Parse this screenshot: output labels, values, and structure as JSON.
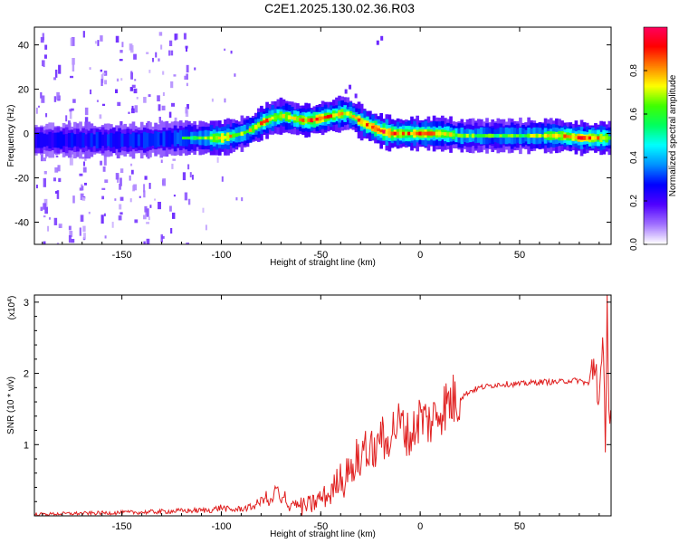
{
  "title": "C2E1.2025.130.02.36.R03",
  "chart_data": [
    {
      "type": "heatmap",
      "xlabel": "Height of straight line (km)",
      "ylabel": "Frequency (Hz)",
      "xlim": [
        -194,
        96
      ],
      "ylim": [
        -50,
        48
      ],
      "xticks": [
        -150,
        -100,
        -50,
        0,
        50
      ],
      "yticks": [
        -40,
        -20,
        0,
        20,
        40
      ],
      "colorbar": {
        "label": "Normalized spectral amplitude",
        "range": [
          0,
          1
        ],
        "ticks": [
          0.0,
          0.2,
          0.4,
          0.6,
          0.8
        ],
        "tick_labels": [
          "0.0",
          "0.2",
          "0.4",
          "0.6",
          "0.8"
        ],
        "colormap": [
          "#ffffff",
          "#a070ff",
          "#5000ff",
          "#0000ff",
          "#0090ff",
          "#00ffff",
          "#00ff60",
          "#40ff00",
          "#ffff00",
          "#ff8000",
          "#ff0000",
          "#ff0060"
        ]
      },
      "ridge": [
        {
          "x": -194,
          "f": -3,
          "amp": 0.4
        },
        {
          "x": -180,
          "f": -3,
          "amp": 0.45
        },
        {
          "x": -160,
          "f": -3,
          "amp": 0.5
        },
        {
          "x": -140,
          "f": -3,
          "amp": 0.5
        },
        {
          "x": -120,
          "f": -2,
          "amp": 0.55
        },
        {
          "x": -110,
          "f": -2,
          "amp": 0.6
        },
        {
          "x": -100,
          "f": -2,
          "amp": 0.85
        },
        {
          "x": -95,
          "f": -1,
          "amp": 0.7
        },
        {
          "x": -90,
          "f": 0,
          "amp": 0.65
        },
        {
          "x": -85,
          "f": 2,
          "amp": 0.7
        },
        {
          "x": -80,
          "f": 5,
          "amp": 0.8
        },
        {
          "x": -75,
          "f": 7,
          "amp": 0.75
        },
        {
          "x": -70,
          "f": 8,
          "amp": 0.7
        },
        {
          "x": -65,
          "f": 7,
          "amp": 0.7
        },
        {
          "x": -60,
          "f": 6,
          "amp": 0.75
        },
        {
          "x": -55,
          "f": 6,
          "amp": 0.85
        },
        {
          "x": -50,
          "f": 7,
          "amp": 0.8
        },
        {
          "x": -45,
          "f": 8,
          "amp": 0.8
        },
        {
          "x": -40,
          "f": 9,
          "amp": 0.75
        },
        {
          "x": -37,
          "f": 9,
          "amp": 0.7
        },
        {
          "x": -33,
          "f": 7,
          "amp": 0.75
        },
        {
          "x": -30,
          "f": 5,
          "amp": 0.8
        },
        {
          "x": -25,
          "f": 3,
          "amp": 0.85
        },
        {
          "x": -20,
          "f": 1,
          "amp": 0.9
        },
        {
          "x": -15,
          "f": 0,
          "amp": 0.85
        },
        {
          "x": -10,
          "f": 0,
          "amp": 0.8
        },
        {
          "x": 0,
          "f": 0,
          "amp": 0.8
        },
        {
          "x": 10,
          "f": 0,
          "amp": 0.75
        },
        {
          "x": 20,
          "f": -1,
          "amp": 0.65
        },
        {
          "x": 30,
          "f": -1,
          "amp": 0.6
        },
        {
          "x": 50,
          "f": -1,
          "amp": 0.6
        },
        {
          "x": 70,
          "f": -1,
          "amp": 0.75
        },
        {
          "x": 80,
          "f": -2,
          "amp": 0.85
        },
        {
          "x": 90,
          "f": -2,
          "amp": 0.8
        },
        {
          "x": 96,
          "f": -2,
          "amp": 0.6
        }
      ]
    },
    {
      "type": "line",
      "xlabel": "Height of straight line (km)",
      "ylabel": "SNR (10 * v/v)",
      "y_multiplier": "(x10",
      "y_multiplier_exp": "4",
      "y_multiplier_close": ")",
      "xlim": [
        -194,
        96
      ],
      "ylim": [
        0,
        3.1
      ],
      "xticks": [
        -150,
        -100,
        -50,
        0,
        50
      ],
      "yticks": [
        1,
        2,
        3
      ],
      "series_color": "#e02020",
      "x": [
        -194,
        -180,
        -160,
        -140,
        -120,
        -105,
        -100,
        -95,
        -90,
        -85,
        -80,
        -78,
        -76,
        -74,
        -72,
        -70,
        -68,
        -66,
        -64,
        -60,
        -55,
        -50,
        -45,
        -40,
        -38,
        -36,
        -34,
        -32,
        -30,
        -28,
        -26,
        -24,
        -22,
        -20,
        -18,
        -15,
        -10,
        -5,
        0,
        5,
        10,
        15,
        20,
        25,
        30,
        40,
        50,
        60,
        70,
        75,
        80,
        85,
        88,
        90,
        92,
        93,
        94,
        95,
        96
      ],
      "y": [
        0.02,
        0.03,
        0.04,
        0.05,
        0.07,
        0.08,
        0.12,
        0.08,
        0.1,
        0.12,
        0.2,
        0.3,
        0.15,
        0.25,
        0.4,
        0.15,
        0.3,
        0.1,
        0.2,
        0.12,
        0.15,
        0.25,
        0.3,
        0.6,
        0.4,
        0.8,
        0.5,
        0.9,
        0.6,
        1.2,
        0.7,
        1.0,
        0.8,
        1.3,
        0.9,
        1.2,
        1.3,
        1.1,
        1.4,
        1.3,
        1.5,
        1.6,
        1.65,
        1.75,
        1.8,
        1.85,
        1.85,
        1.88,
        1.88,
        1.9,
        1.9,
        1.85,
        2.2,
        1.6,
        2.3,
        1.0,
        3.0,
        1.5,
        1.3
      ]
    }
  ]
}
